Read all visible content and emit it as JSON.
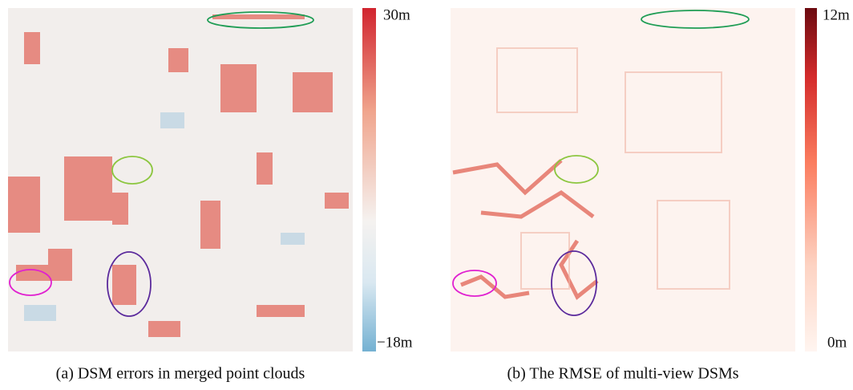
{
  "panels": [
    {
      "caption": "(a) DSM errors in merged point clouds",
      "colorbar": {
        "max_label": "30m",
        "min_label": "−18m"
      }
    },
    {
      "caption": "(b) The RMSE of multi-view DSMs",
      "colorbar": {
        "max_label": "12m",
        "min_label": "0m"
      }
    }
  ]
}
